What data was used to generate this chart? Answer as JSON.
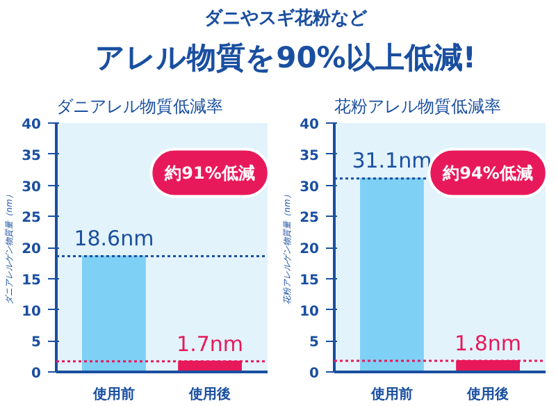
{
  "chart_data": [
    {
      "type": "other",
      "title": "アレル物質を90%以上低減!",
      "subtitle": "ダニやスギ花粉など"
    },
    {
      "type": "bar",
      "title": "ダニアレル物質低減率",
      "ylabel": "ダニアレルゲン物質量（nm）",
      "categories": [
        "使用前",
        "使用後"
      ],
      "values": [
        18.6,
        1.7
      ],
      "colors": [
        "#7fd0f5",
        "#e8195a"
      ],
      "value_labels": [
        "18.6nm",
        "1.7nm"
      ],
      "ylim": [
        0,
        40
      ],
      "yticks": [
        0,
        5,
        10,
        15,
        20,
        25,
        30,
        35,
        40
      ],
      "grid": false,
      "annotations": [
        "約91%低減"
      ],
      "ref_lines": [
        {
          "axis": "y",
          "value": 18.6,
          "color": "#1a4fa0",
          "line_style": "dotted"
        },
        {
          "axis": "y",
          "value": 1.7,
          "color": "#e8195a",
          "line_style": "dotted"
        }
      ]
    },
    {
      "type": "bar",
      "title": "花粉アレル物質低減率",
      "ylabel": "花粉アレルゲン物質量（nm）",
      "categories": [
        "使用前",
        "使用後"
      ],
      "values": [
        31.1,
        1.8
      ],
      "colors": [
        "#7fd0f5",
        "#e8195a"
      ],
      "value_labels": [
        "31.1nm",
        "1.8nm"
      ],
      "ylim": [
        0,
        40
      ],
      "yticks": [
        0,
        5,
        10,
        15,
        20,
        25,
        30,
        35,
        40
      ],
      "grid": false,
      "annotations": [
        "約94%低減"
      ],
      "ref_lines": [
        {
          "axis": "y",
          "value": 31.1,
          "color": "#1a4fa0",
          "line_style": "dotted"
        },
        {
          "axis": "y",
          "value": 1.8,
          "color": "#e8195a",
          "line_style": "dotted"
        }
      ]
    }
  ]
}
